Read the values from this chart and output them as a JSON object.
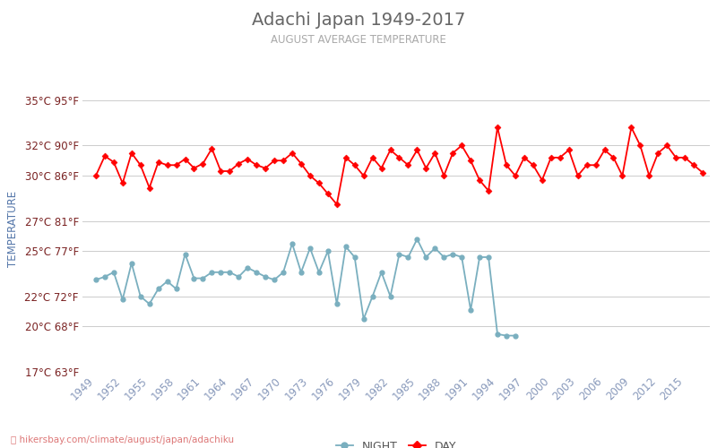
{
  "title": "Adachi Japan 1949-2017",
  "subtitle": "AUGUST AVERAGE TEMPERATURE",
  "ylabel": "TEMPERATURE",
  "footer": "hikersbay.com/climate/august/japan/adachiku",
  "years_day": [
    1949,
    1950,
    1951,
    1952,
    1953,
    1954,
    1955,
    1956,
    1957,
    1958,
    1959,
    1960,
    1961,
    1962,
    1963,
    1964,
    1965,
    1966,
    1967,
    1968,
    1969,
    1970,
    1971,
    1972,
    1973,
    1974,
    1975,
    1976,
    1977,
    1978,
    1979,
    1980,
    1981,
    1982,
    1983,
    1984,
    1985,
    1986,
    1987,
    1988,
    1989,
    1990,
    1991,
    1992,
    1993,
    1994,
    1995,
    1996,
    1997,
    1998,
    1999,
    2000,
    2001,
    2002,
    2003,
    2004,
    2005,
    2006,
    2007,
    2008,
    2009,
    2010,
    2011,
    2012,
    2013,
    2014,
    2015,
    2016,
    2017
  ],
  "day": [
    30.0,
    31.3,
    30.9,
    29.5,
    31.5,
    30.7,
    29.2,
    30.9,
    30.7,
    30.7,
    31.1,
    30.5,
    30.8,
    31.8,
    30.3,
    30.3,
    30.8,
    31.1,
    30.7,
    30.5,
    31.0,
    31.0,
    31.5,
    30.8,
    30.0,
    29.5,
    28.8,
    28.1,
    31.2,
    30.7,
    30.0,
    31.2,
    30.5,
    31.7,
    31.2,
    30.7,
    31.7,
    30.5,
    31.5,
    30.0,
    31.5,
    32.0,
    31.0,
    29.7,
    29.0,
    33.2,
    30.7,
    30.0,
    31.2,
    30.7,
    29.7,
    31.2,
    31.2,
    31.7,
    30.0,
    30.7,
    30.7,
    31.7,
    31.2,
    30.0,
    33.2,
    32.0,
    30.0,
    31.5,
    32.0,
    31.2,
    31.2,
    30.7,
    30.2
  ],
  "years_night": [
    1949,
    1950,
    1951,
    1952,
    1953,
    1954,
    1955,
    1956,
    1957,
    1958,
    1959,
    1960,
    1961,
    1962,
    1963,
    1964,
    1965,
    1966,
    1967,
    1968,
    1969,
    1970,
    1971,
    1972,
    1973,
    1974,
    1975,
    1976,
    1977,
    1978,
    1979,
    1980,
    1981,
    1982,
    1983,
    1984,
    1985,
    1986,
    1987,
    1988,
    1989,
    1990,
    1991,
    1992,
    1993,
    1994,
    1995,
    1996
  ],
  "night": [
    23.1,
    23.3,
    23.6,
    21.8,
    24.2,
    22.0,
    21.5,
    22.5,
    23.0,
    22.5,
    24.8,
    23.2,
    23.2,
    23.6,
    23.6,
    23.6,
    23.3,
    23.9,
    23.6,
    23.3,
    23.1,
    23.6,
    25.5,
    23.6,
    25.2,
    23.6,
    25.0,
    21.5,
    25.3,
    24.6,
    20.5,
    22.0,
    23.6,
    22.0,
    24.8,
    24.6,
    25.8,
    24.6,
    25.2,
    24.6,
    24.8,
    24.6,
    21.1,
    24.6,
    24.6,
    19.5,
    19.4,
    19.4
  ],
  "yticks_c": [
    17,
    20,
    22,
    25,
    27,
    30,
    32,
    35
  ],
  "yticks_f": [
    63,
    68,
    72,
    77,
    81,
    86,
    90,
    95
  ],
  "xtick_years": [
    1949,
    1952,
    1955,
    1958,
    1961,
    1964,
    1967,
    1970,
    1973,
    1976,
    1979,
    1982,
    1985,
    1988,
    1991,
    1994,
    1997,
    2000,
    2003,
    2006,
    2009,
    2012,
    2015
  ],
  "day_color": "#ff0000",
  "night_color": "#7aafbf",
  "title_color": "#666666",
  "subtitle_color": "#aaaaaa",
  "ylabel_color": "#5577aa",
  "tick_label_color": "#7a2222",
  "xtick_color": "#8899bb",
  "grid_color": "#cccccc",
  "bg_color": "#ffffff",
  "ymin": 17,
  "ymax": 36,
  "marker_size": 3.5,
  "linewidth": 1.3
}
